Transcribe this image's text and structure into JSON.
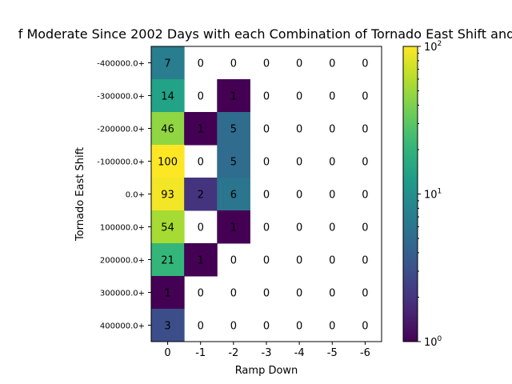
{
  "chart_data": {
    "type": "heatmap",
    "title": "f Moderate Since 2002 Days with each Combination of Tornado East Shift and",
    "xlabel": "Ramp Down",
    "ylabel": "Tornado East Shift",
    "x_categories": [
      "0",
      "-1",
      "-2",
      "-3",
      "-4",
      "-5",
      "-6"
    ],
    "y_categories": [
      "-400000.0+",
      "-300000.0+",
      "-200000.0+",
      "-100000.0+",
      "0.0+",
      "100000.0+",
      "200000.0+",
      "300000.0+",
      "400000.0+"
    ],
    "values": [
      [
        7,
        0,
        0,
        0,
        0,
        0,
        0
      ],
      [
        14,
        0,
        1,
        0,
        0,
        0,
        0
      ],
      [
        46,
        1,
        5,
        0,
        0,
        0,
        0
      ],
      [
        100,
        0,
        5,
        0,
        0,
        0,
        0
      ],
      [
        93,
        2,
        6,
        0,
        0,
        0,
        0
      ],
      [
        54,
        0,
        1,
        0,
        0,
        0,
        0
      ],
      [
        21,
        1,
        0,
        0,
        0,
        0,
        0
      ],
      [
        1,
        0,
        0,
        0,
        0,
        0,
        0
      ],
      [
        3,
        0,
        0,
        0,
        0,
        0,
        0
      ]
    ],
    "colorscale": "viridis",
    "color_scale_type": "log",
    "color_range": [
      1,
      100
    ],
    "zero_cells": "blank",
    "colorbar": {
      "ticks": [
        {
          "base": "10",
          "exp": "0"
        },
        {
          "base": "10",
          "exp": "1"
        },
        {
          "base": "10",
          "exp": "2"
        }
      ]
    }
  }
}
